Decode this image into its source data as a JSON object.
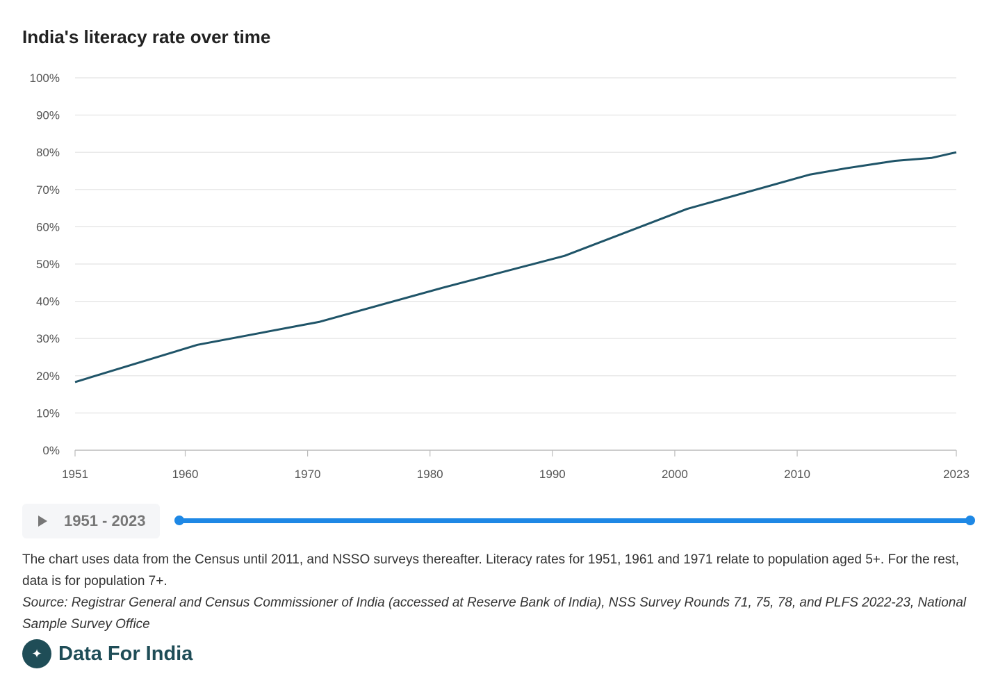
{
  "chart_data": {
    "type": "line",
    "title": "India's literacy rate over time",
    "xlabel": "",
    "ylabel": "",
    "x": [
      1951,
      1961,
      1971,
      1981,
      1991,
      2001,
      2011,
      2014,
      2018,
      2021,
      2023
    ],
    "series": [
      {
        "values": [
          18.3,
          28.3,
          34.5,
          43.6,
          52.2,
          64.8,
          74.0,
          75.7,
          77.7,
          78.5,
          80.0
        ],
        "color": "#1f5468"
      }
    ],
    "xlim": [
      1951,
      2023
    ],
    "ylim": [
      0,
      100
    ],
    "x_ticks": [
      1951,
      1960,
      1970,
      1980,
      1990,
      2000,
      2010,
      2023
    ],
    "y_ticks": [
      "0%",
      "10%",
      "20%",
      "30%",
      "40%",
      "50%",
      "60%",
      "70%",
      "80%",
      "90%",
      "100%"
    ],
    "grid": true
  },
  "controls": {
    "play_icon": "play-icon",
    "range_label": "1951 - 2023",
    "slider_color": "#1e88e5"
  },
  "note": "The chart uses data from the Census until 2011, and NSSO surveys thereafter. Literacy rates for 1951, 1961 and 1971 relate to population aged 5+. For the rest, data is for population 7+.",
  "source": "Source: Registrar General and Census Commissioner of India (accessed at Reserve Bank of India), NSS Survey Rounds 71, 75, 78, and PLFS 2022-23, National Sample Survey Office",
  "brand": {
    "name": "Data For India",
    "logo_icon": "india-map-logo"
  }
}
